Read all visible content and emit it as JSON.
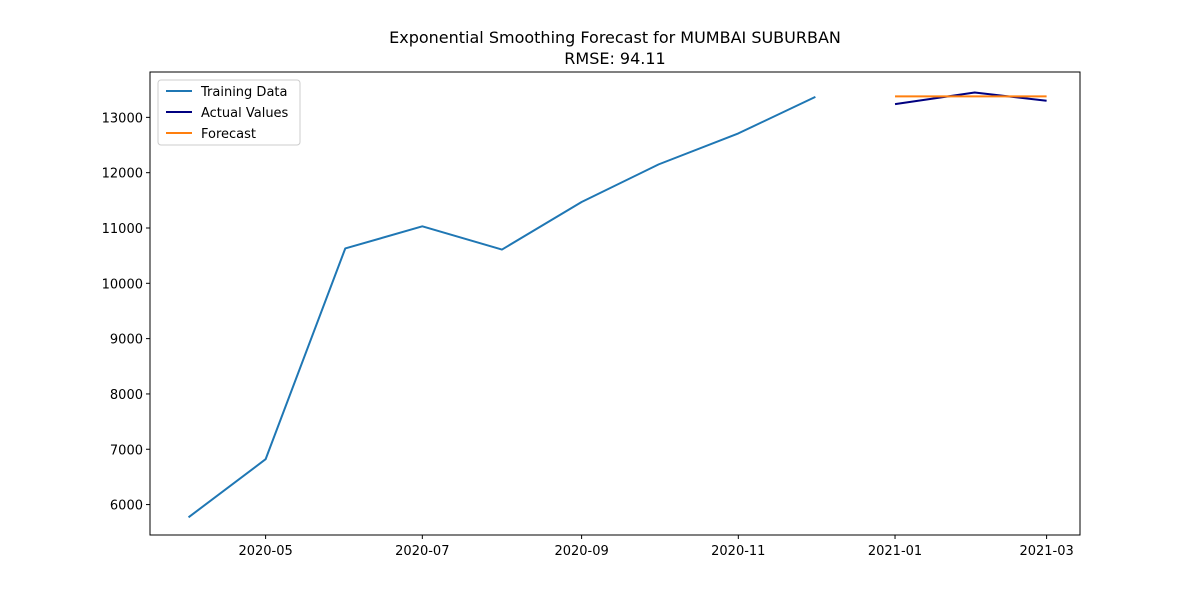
{
  "chart_data": {
    "type": "line",
    "title": "Exponential Smoothing Forecast for MUMBAI SUBURBAN",
    "subtitle": "RMSE: 94.11",
    "xlabel": "",
    "ylabel": "",
    "xlim": [
      "2020-03-17",
      "2021-03-14"
    ],
    "ylim": [
      5450,
      13820
    ],
    "grid": false,
    "legend_position": "top-left",
    "x_ticks": [
      "2020-05",
      "2020-07",
      "2020-09",
      "2020-11",
      "2021-01",
      "2021-03"
    ],
    "y_ticks": [
      6000,
      7000,
      8000,
      9000,
      10000,
      11000,
      12000,
      13000
    ],
    "series": [
      {
        "name": "Training Data",
        "color": "#1f77b4",
        "x": [
          "2020-04-01",
          "2020-05-01",
          "2020-06-01",
          "2020-07-01",
          "2020-08-01",
          "2020-09-01",
          "2020-10-01",
          "2020-11-01",
          "2020-12-01"
        ],
        "y": [
          5770,
          6820,
          10630,
          11030,
          10610,
          11470,
          12150,
          12710,
          13370
        ]
      },
      {
        "name": "Actual Values",
        "color": "#000080",
        "x": [
          "2021-01-01",
          "2021-02-01",
          "2021-03-01"
        ],
        "y": [
          13240,
          13450,
          13300
        ]
      },
      {
        "name": "Forecast",
        "color": "#ff7f0e",
        "x": [
          "2021-01-01",
          "2021-02-01",
          "2021-03-01"
        ],
        "y": [
          13380,
          13380,
          13380
        ]
      }
    ]
  }
}
